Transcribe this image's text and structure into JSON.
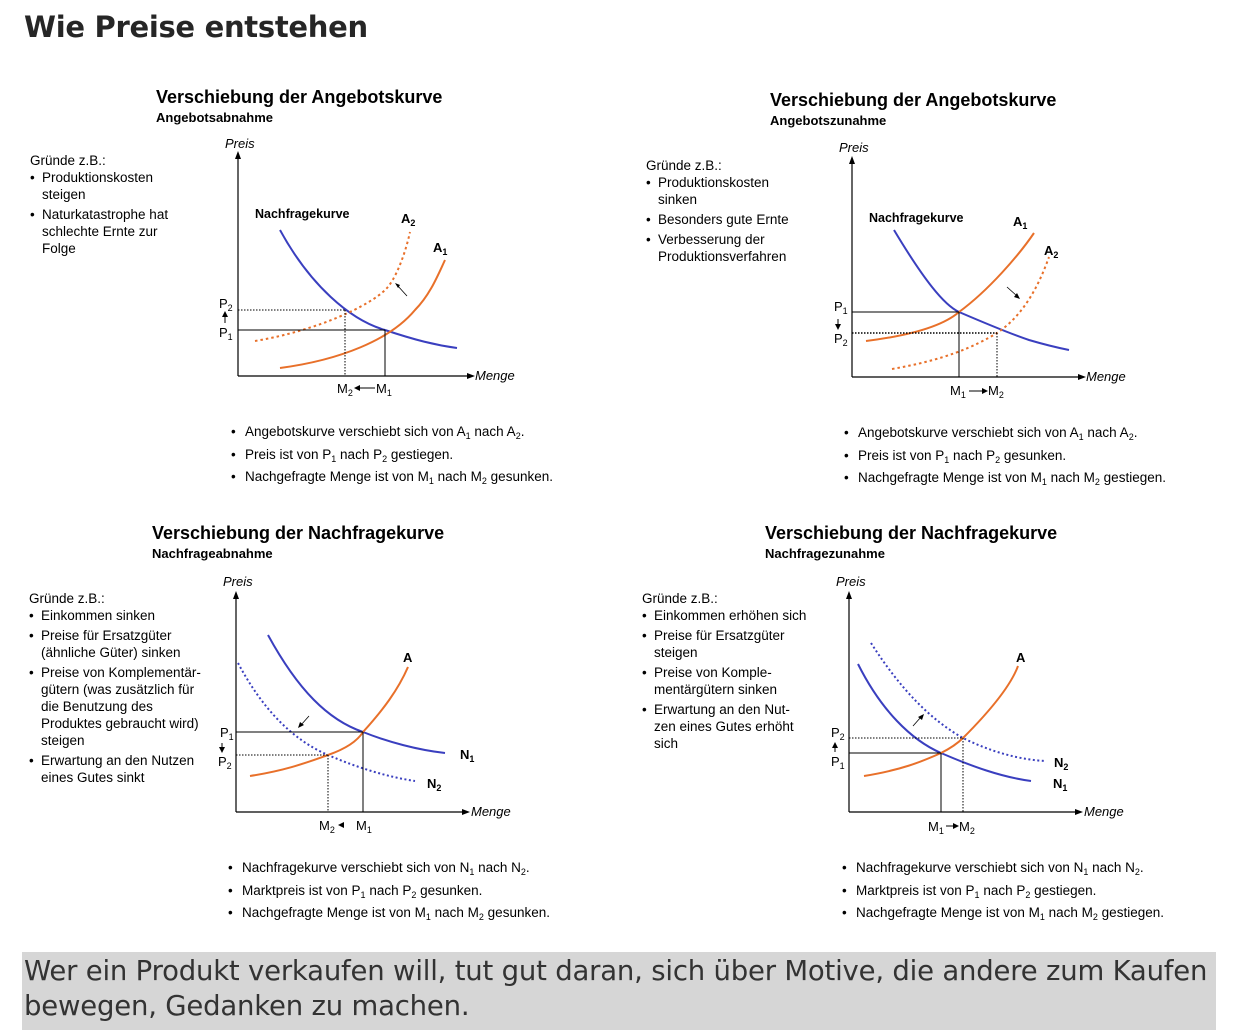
{
  "page": {
    "title": "Wie Preise entstehen",
    "footer": "Wer ein Produkt verkaufen will, tut gut daran, sich über Motive, die andere zum Kaufen bewegen, Gedanken zu machen."
  },
  "colors": {
    "demand": "#3a3fbf",
    "supply": "#e8702a",
    "footer_bg": "#d6d6d6"
  },
  "panels": [
    {
      "title": "Verschiebung der Angebotskurve",
      "subtitle": "Angebotsabnahme",
      "reasons_heading": "Gründe z.B.:",
      "reasons": [
        "Produktionskosten steigen",
        "Naturkatastrophe hat schlechte Ernte zur Folge"
      ],
      "axis_y": "Preis",
      "axis_x": "Menge",
      "curve_label_demand": "Nachfragekurve",
      "labels": {
        "p_top": "P",
        "p_top_sub": "2",
        "p_bottom": "P",
        "p_bottom_sub": "1",
        "m_left": "M",
        "m_left_sub": "2",
        "m_right": "M",
        "m_right_sub": "1",
        "curve_a": "A",
        "curve_a_sub": "2",
        "curve_b": "A",
        "curve_b_sub": "1"
      },
      "summary": [
        {
          "t1": "Angebotskurve verschiebt sich von A",
          "s1": "1",
          "t2": " nach A",
          "s2": "2",
          "t3": "."
        },
        {
          "t1": "Preis ist von P",
          "s1": "1",
          "t2": " nach P",
          "s2": "2",
          "t3": " gestiegen."
        },
        {
          "t1": "Nachgefragte Menge ist von M",
          "s1": "1",
          "t2": " nach M",
          "s2": "2",
          "t3": " gesunken."
        }
      ]
    },
    {
      "title": "Verschiebung der Angebotskurve",
      "subtitle": "Angebotszunahme",
      "reasons_heading": "Gründe z.B.:",
      "reasons": [
        "Produktionskosten sinken",
        "Besonders gute Ernte",
        "Verbesserung der Produktionsverfahren"
      ],
      "axis_y": "Preis",
      "axis_x": "Menge",
      "curve_label_demand": "Nachfragekurve",
      "labels": {
        "p_top": "P",
        "p_top_sub": "1",
        "p_bottom": "P",
        "p_bottom_sub": "2",
        "m_left": "M",
        "m_left_sub": "1",
        "m_right": "M",
        "m_right_sub": "2",
        "curve_a": "A",
        "curve_a_sub": "1",
        "curve_b": "A",
        "curve_b_sub": "2"
      },
      "summary": [
        {
          "t1": "Angebotskurve verschiebt sich von A",
          "s1": "1",
          "t2": " nach A",
          "s2": "2",
          "t3": "."
        },
        {
          "t1": "Preis ist von P",
          "s1": "1",
          "t2": " nach P",
          "s2": "2",
          "t3": " gesunken."
        },
        {
          "t1": "Nachgefragte Menge ist von M",
          "s1": "1",
          "t2": " nach M",
          "s2": "2",
          "t3": " gestiegen."
        }
      ]
    },
    {
      "title": "Verschiebung der Nachfragekurve",
      "subtitle": "Nachfrageabnahme",
      "reasons_heading": "Gründe z.B.:",
      "reasons": [
        "Einkommen sinken",
        "Preise für Ersatzgüter (ähnliche Güter) sinken",
        "Preise von Komplementär-gütern (was zusätzlich für die Benutzung des Produktes gebraucht wird) steigen",
        "Erwartung an den Nutzen eines Gutes sinkt"
      ],
      "axis_y": "Preis",
      "axis_x": "Menge",
      "labels": {
        "p_top": "P",
        "p_top_sub": "1",
        "p_bottom": "P",
        "p_bottom_sub": "2",
        "m_left": "M",
        "m_left_sub": "2",
        "m_right": "M",
        "m_right_sub": "1",
        "curve_a": "A",
        "curve_n1": "N",
        "curve_n1_sub": "1",
        "curve_n2": "N",
        "curve_n2_sub": "2"
      },
      "summary": [
        {
          "t1": "Nachfragekurve verschiebt sich von N",
          "s1": "1",
          "t2": " nach N",
          "s2": "2",
          "t3": "."
        },
        {
          "t1": "Marktpreis ist von P",
          "s1": "1",
          "t2": " nach P",
          "s2": "2",
          "t3": " gesunken."
        },
        {
          "t1": "Nachgefragte Menge ist von M",
          "s1": "1",
          "t2": " nach M",
          "s2": "2",
          "t3": " gesunken."
        }
      ]
    },
    {
      "title": "Verschiebung der Nachfragekurve",
      "subtitle": "Nachfragezunahme",
      "reasons_heading": "Gründe z.B.:",
      "reasons": [
        "Einkommen erhöhen sich",
        "Preise für Ersatzgüter steigen",
        "Preise von Komple-mentärgütern sinken",
        "Erwartung an den Nut-zen eines Gutes erhöht sich"
      ],
      "axis_y": "Preis",
      "axis_x": "Menge",
      "labels": {
        "p_top": "P",
        "p_top_sub": "2",
        "p_bottom": "P",
        "p_bottom_sub": "1",
        "m_left": "M",
        "m_left_sub": "1",
        "m_right": "M",
        "m_right_sub": "2",
        "curve_a": "A",
        "curve_n1": "N",
        "curve_n1_sub": "2",
        "curve_n2": "N",
        "curve_n2_sub": "1"
      },
      "summary": [
        {
          "t1": "Nachfragekurve verschiebt sich von N",
          "s1": "1",
          "t2": " nach N",
          "s2": "2",
          "t3": "."
        },
        {
          "t1": "Marktpreis ist von P",
          "s1": "1",
          "t2": " nach P",
          "s2": "2",
          "t3": " gestiegen."
        },
        {
          "t1": "Nachgefragte Menge ist von M",
          "s1": "1",
          "t2": " nach M",
          "s2": "2",
          "t3": " gestiegen."
        }
      ]
    }
  ]
}
